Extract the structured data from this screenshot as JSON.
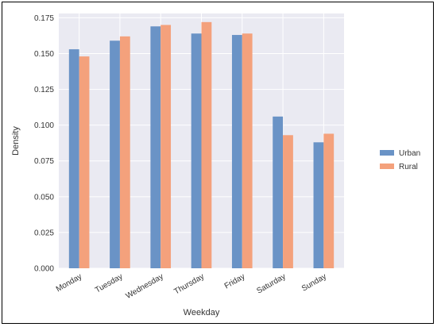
{
  "chart_data": {
    "type": "bar",
    "title": "",
    "xlabel": "Weekday",
    "ylabel": "Density",
    "categories": [
      "Monday",
      "Tuesday",
      "Wednesday",
      "Thursday",
      "Friday",
      "Saturday",
      "Sunday"
    ],
    "series": [
      {
        "name": "Urban",
        "values": [
          0.153,
          0.159,
          0.169,
          0.164,
          0.163,
          0.106,
          0.088
        ],
        "color": "#6a93c6"
      },
      {
        "name": "Rural",
        "values": [
          0.148,
          0.162,
          0.17,
          0.172,
          0.164,
          0.093,
          0.094
        ],
        "color": "#f4a17c"
      }
    ],
    "ylim": [
      0,
      0.178
    ],
    "yticks": [
      "0.000",
      "0.025",
      "0.050",
      "0.075",
      "0.100",
      "0.125",
      "0.150",
      "0.175"
    ],
    "grid": true,
    "legend_position": "right",
    "background_color": "#eaeaf2",
    "grid_color": "#ffffff"
  }
}
